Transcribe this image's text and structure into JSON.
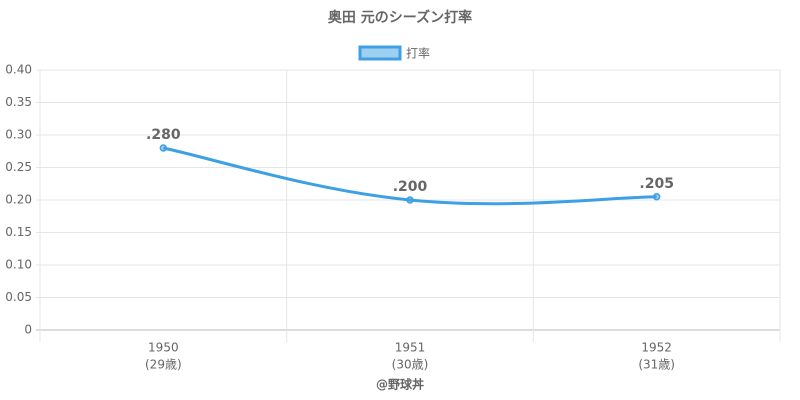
{
  "chart_data": {
    "type": "line",
    "title": "奥田 元のシーズン打率",
    "categories": [
      "1950",
      "1951",
      "1952"
    ],
    "category_sublabels": [
      "(29歳)",
      "(30歳)",
      "(31歳)"
    ],
    "series": [
      {
        "name": "打率",
        "color": "#3ea0e4",
        "values": [
          0.28,
          0.2,
          0.205
        ],
        "value_labels": [
          ".280",
          ".200",
          ".205"
        ]
      }
    ],
    "ylim": [
      0,
      0.4
    ],
    "yticks": [
      0,
      0.05,
      {
        "value": 0.1,
        "label": "0.10"
      },
      0.15,
      {
        "value": 0.2,
        "label": "0.20"
      },
      0.25,
      {
        "value": 0.3,
        "label": "0.30"
      },
      0.35,
      {
        "value": 0.4,
        "label": "0.40"
      }
    ],
    "grid": true,
    "legend": "top",
    "footer": "@野球丼"
  }
}
